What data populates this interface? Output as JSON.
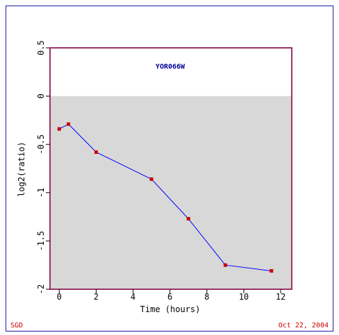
{
  "footer": {
    "left": "SGD",
    "right": "Oct 22, 2004"
  },
  "chart_data": {
    "type": "line",
    "title": "YOR066W",
    "xlabel": "Time (hours)",
    "ylabel": "log2(ratio)",
    "xlim": [
      -0.5,
      12.6
    ],
    "ylim": [
      -2,
      0.5
    ],
    "x_ticks": [
      0,
      2,
      4,
      6,
      8,
      10,
      12
    ],
    "y_ticks": [
      0.5,
      0,
      -0.5,
      -1,
      -1.5,
      -2
    ],
    "x_tick_labels": [
      "0",
      "2",
      "4",
      "6",
      "8",
      "10",
      "12"
    ],
    "y_tick_labels": [
      "0.5",
      "0",
      "-0.5",
      "-1",
      "-1.5",
      "-2"
    ],
    "grid": false,
    "shaded_below_zero": true,
    "series": [
      {
        "x": [
          0,
          0.5,
          2,
          5,
          7,
          9,
          11.5
        ],
        "y": [
          -0.34,
          -0.29,
          -0.58,
          -0.86,
          -1.27,
          -1.75,
          -1.81
        ]
      }
    ],
    "colors": {
      "line": "#0000ff",
      "marker": "#cc0000",
      "plot_border": "#993366",
      "shade": "#d8d8d8",
      "title": "#000099"
    }
  }
}
